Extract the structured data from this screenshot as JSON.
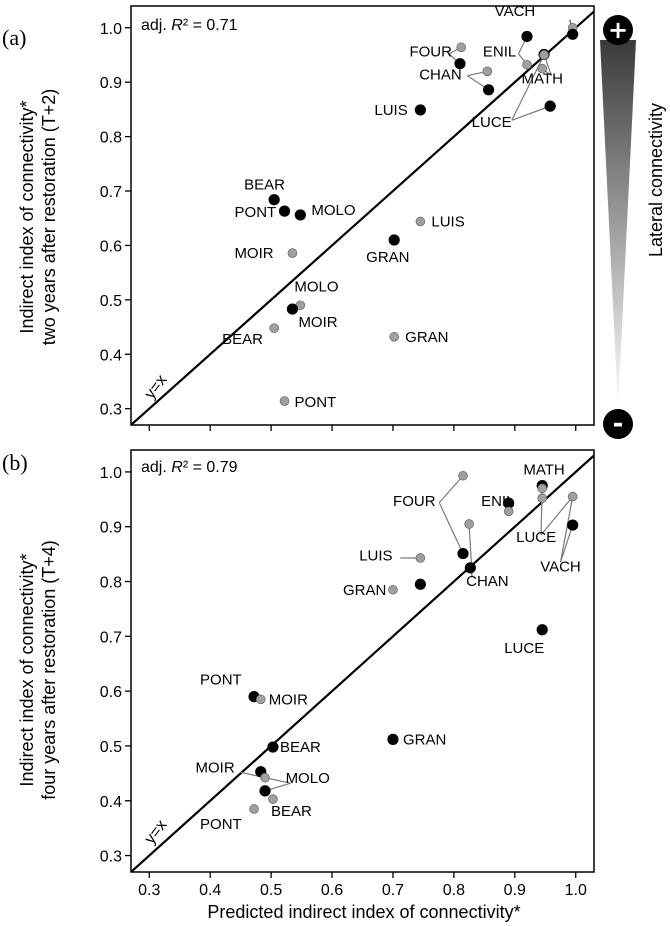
{
  "figure": {
    "shared_xlabel": "Predicted indirect index of connectivity*",
    "side_scale": {
      "label": "Lateral connectivity",
      "plus_symbol": "+",
      "minus_symbol": "-",
      "gradient_top": "#3a3a3a",
      "gradient_bottom": "#ffffff"
    }
  },
  "chart_data": [
    {
      "type": "scatter",
      "panel_label": "(a)",
      "annotation_prefix": "adj. ",
      "annotation_r": "R",
      "annotation_rest": "² = 0.71",
      "identity_label": "y=x",
      "ylabel_line1": "Indirect index of connectivity*",
      "ylabel_line2": "two years after restoration (T+2)",
      "xlabel": "",
      "xlim": [
        0.27,
        1.03
      ],
      "ylim": [
        0.27,
        1.04
      ],
      "xticks": [
        "0.3",
        "0.4",
        "0.5",
        "0.6",
        "0.7",
        "0.8",
        "0.9",
        "1.0"
      ],
      "yticks": [
        "0.3",
        "0.4",
        "0.5",
        "0.6",
        "0.7",
        "0.8",
        "0.9",
        "1.0"
      ],
      "colors": {
        "black": "#000000",
        "grey": "#a0a0a0",
        "leader": "#7a7a7a"
      },
      "points": [
        {
          "site": "VACH",
          "x": 0.995,
          "y": 1.0,
          "color": "grey"
        },
        {
          "site": "VACH",
          "x": 0.995,
          "y": 0.988,
          "color": "black"
        },
        {
          "site": "",
          "x": 0.92,
          "y": 0.984,
          "color": "black"
        },
        {
          "site": "",
          "x": 0.948,
          "y": 0.951,
          "color": "black"
        },
        {
          "site": "",
          "x": 0.948,
          "y": 0.95,
          "color": "grey"
        },
        {
          "site": "",
          "x": 0.92,
          "y": 0.932,
          "color": "grey"
        },
        {
          "site": "",
          "x": 0.945,
          "y": 0.925,
          "color": "grey"
        },
        {
          "site": "",
          "x": 0.812,
          "y": 0.964,
          "color": "grey"
        },
        {
          "site": "",
          "x": 0.81,
          "y": 0.934,
          "color": "black"
        },
        {
          "site": "",
          "x": 0.855,
          "y": 0.92,
          "color": "grey"
        },
        {
          "site": "",
          "x": 0.857,
          "y": 0.886,
          "color": "black"
        },
        {
          "site": "",
          "x": 0.958,
          "y": 0.856,
          "color": "black"
        },
        {
          "site": "LUIS",
          "x": 0.745,
          "y": 0.849,
          "color": "black"
        },
        {
          "site": "BEAR",
          "x": 0.505,
          "y": 0.684,
          "color": "black"
        },
        {
          "site": "PONT",
          "x": 0.522,
          "y": 0.663,
          "color": "black"
        },
        {
          "site": "MOLO",
          "x": 0.548,
          "y": 0.656,
          "color": "black"
        },
        {
          "site": "LUIS",
          "x": 0.745,
          "y": 0.644,
          "color": "grey"
        },
        {
          "site": "GRAN",
          "x": 0.702,
          "y": 0.61,
          "color": "black"
        },
        {
          "site": "MOIR",
          "x": 0.535,
          "y": 0.586,
          "color": "grey"
        },
        {
          "site": "MOLO",
          "x": 0.548,
          "y": 0.49,
          "color": "grey"
        },
        {
          "site": "MOIR",
          "x": 0.535,
          "y": 0.483,
          "color": "black"
        },
        {
          "site": "BEAR",
          "x": 0.505,
          "y": 0.448,
          "color": "grey"
        },
        {
          "site": "GRAN",
          "x": 0.702,
          "y": 0.432,
          "color": "grey"
        },
        {
          "site": "PONT",
          "x": 0.522,
          "y": 0.314,
          "color": "grey"
        }
      ],
      "group_labels": [
        {
          "text": "FOUR",
          "x": 0.762,
          "y": 0.947
        },
        {
          "text": "ENIL",
          "x": 0.875,
          "y": 0.947
        },
        {
          "text": "CHAN",
          "x": 0.778,
          "y": 0.905
        },
        {
          "text": "MATH",
          "x": 0.945,
          "y": 0.898
        },
        {
          "text": "LUCE",
          "x": 0.862,
          "y": 0.818
        }
      ],
      "leaders": [
        {
          "from": [
            0.99,
            1.015
          ],
          "to": [
            0.995,
            1.0
          ]
        },
        {
          "from": [
            0.99,
            1.015
          ],
          "to": [
            0.995,
            0.988
          ]
        },
        {
          "from": [
            0.792,
            0.952
          ],
          "to": [
            0.812,
            0.964
          ]
        },
        {
          "from": [
            0.792,
            0.952
          ],
          "to": [
            0.81,
            0.934
          ]
        },
        {
          "from": [
            0.906,
            0.952
          ],
          "to": [
            0.92,
            0.984
          ]
        },
        {
          "from": [
            0.906,
            0.952
          ],
          "to": [
            0.92,
            0.932
          ]
        },
        {
          "from": [
            0.822,
            0.912
          ],
          "to": [
            0.855,
            0.92
          ]
        },
        {
          "from": [
            0.822,
            0.912
          ],
          "to": [
            0.857,
            0.886
          ]
        },
        {
          "from": [
            0.96,
            0.912
          ],
          "to": [
            0.948,
            0.951
          ]
        },
        {
          "from": [
            0.96,
            0.912
          ],
          "to": [
            0.945,
            0.925
          ]
        },
        {
          "from": [
            0.895,
            0.83
          ],
          "to": [
            0.948,
            0.95
          ]
        },
        {
          "from": [
            0.895,
            0.83
          ],
          "to": [
            0.958,
            0.856
          ]
        }
      ]
    },
    {
      "type": "scatter",
      "panel_label": "(b)",
      "annotation_prefix": "adj. ",
      "annotation_r": "R",
      "annotation_rest": "² = 0.79",
      "identity_label": "y=x",
      "ylabel_line1": "Indirect index of connectivity*",
      "ylabel_line2": "four years after restoration (T+4)",
      "xlabel": "Predicted indirect index of connectivity*",
      "xlim": [
        0.27,
        1.03
      ],
      "ylim": [
        0.27,
        1.04
      ],
      "xticks": [
        "0.3",
        "0.4",
        "0.5",
        "0.6",
        "0.7",
        "0.8",
        "0.9",
        "1.0"
      ],
      "yticks": [
        "0.3",
        "0.4",
        "0.5",
        "0.6",
        "0.7",
        "0.8",
        "0.9",
        "1.0"
      ],
      "colors": {
        "black": "#000000",
        "grey": "#a0a0a0",
        "leader": "#7a7a7a"
      },
      "points": [
        {
          "site": "",
          "x": 0.815,
          "y": 0.993,
          "color": "grey"
        },
        {
          "site": "",
          "x": 0.945,
          "y": 0.975,
          "color": "black"
        },
        {
          "site": "",
          "x": 0.945,
          "y": 0.97,
          "color": "grey"
        },
        {
          "site": "",
          "x": 0.995,
          "y": 0.955,
          "color": "grey"
        },
        {
          "site": "",
          "x": 0.89,
          "y": 0.943,
          "color": "black"
        },
        {
          "site": "",
          "x": 0.945,
          "y": 0.952,
          "color": "grey"
        },
        {
          "site": "",
          "x": 0.89,
          "y": 0.928,
          "color": "grey"
        },
        {
          "site": "",
          "x": 0.825,
          "y": 0.905,
          "color": "grey"
        },
        {
          "site": "",
          "x": 0.995,
          "y": 0.903,
          "color": "black"
        },
        {
          "site": "",
          "x": 0.815,
          "y": 0.851,
          "color": "black"
        },
        {
          "site": "",
          "x": 0.827,
          "y": 0.825,
          "color": "black"
        },
        {
          "site": "",
          "x": 0.745,
          "y": 0.843,
          "color": "grey"
        },
        {
          "site": "GRAN",
          "x": 0.745,
          "y": 0.795,
          "color": "black"
        },
        {
          "site": "GRAN",
          "x": 0.7,
          "y": 0.785,
          "color": "grey"
        },
        {
          "site": "LUCE",
          "x": 0.945,
          "y": 0.712,
          "color": "black"
        },
        {
          "site": "PONT",
          "x": 0.472,
          "y": 0.59,
          "color": "black"
        },
        {
          "site": "MOIR",
          "x": 0.483,
          "y": 0.585,
          "color": "grey"
        },
        {
          "site": "GRAN",
          "x": 0.7,
          "y": 0.512,
          "color": "black"
        },
        {
          "site": "BEAR",
          "x": 0.503,
          "y": 0.498,
          "color": "black"
        },
        {
          "site": "",
          "x": 0.483,
          "y": 0.453,
          "color": "black"
        },
        {
          "site": "",
          "x": 0.49,
          "y": 0.442,
          "color": "grey"
        },
        {
          "site": "",
          "x": 0.49,
          "y": 0.418,
          "color": "black"
        },
        {
          "site": "BEAR",
          "x": 0.503,
          "y": 0.403,
          "color": "grey"
        },
        {
          "site": "PONT",
          "x": 0.472,
          "y": 0.385,
          "color": "grey"
        }
      ],
      "group_labels": [
        {
          "text": "MATH",
          "x": 0.948,
          "y": 0.995
        },
        {
          "text": "FOUR",
          "x": 0.735,
          "y": 0.938
        },
        {
          "text": "ENIL",
          "x": 0.872,
          "y": 0.938
        },
        {
          "text": "LUIS",
          "x": 0.672,
          "y": 0.838
        },
        {
          "text": "LUCE",
          "x": 0.935,
          "y": 0.872
        },
        {
          "text": "VACH",
          "x": 0.975,
          "y": 0.818
        },
        {
          "text": "CHAN",
          "x": 0.855,
          "y": 0.792
        },
        {
          "text": "MOIR",
          "x": 0.408,
          "y": 0.452
        },
        {
          "text": "MOLO",
          "x": 0.56,
          "y": 0.432
        }
      ],
      "leaders": [
        {
          "from": [
            0.776,
            0.944
          ],
          "to": [
            0.815,
            0.993
          ]
        },
        {
          "from": [
            0.776,
            0.944
          ],
          "to": [
            0.815,
            0.851
          ]
        },
        {
          "from": [
            0.89,
            0.94
          ],
          "to": [
            0.89,
            0.943
          ]
        },
        {
          "from": [
            0.712,
            0.843
          ],
          "to": [
            0.745,
            0.843
          ]
        },
        {
          "from": [
            0.943,
            0.885
          ],
          "to": [
            0.945,
            0.97
          ]
        },
        {
          "from": [
            0.943,
            0.885
          ],
          "to": [
            0.995,
            0.955
          ]
        },
        {
          "from": [
            0.975,
            0.835
          ],
          "to": [
            0.995,
            0.955
          ]
        },
        {
          "from": [
            0.975,
            0.835
          ],
          "to": [
            0.995,
            0.903
          ]
        },
        {
          "from": [
            0.83,
            0.808
          ],
          "to": [
            0.825,
            0.905
          ]
        },
        {
          "from": [
            0.83,
            0.808
          ],
          "to": [
            0.827,
            0.825
          ]
        },
        {
          "from": [
            0.45,
            0.452
          ],
          "to": [
            0.49,
            0.442
          ]
        },
        {
          "from": [
            0.532,
            0.432
          ],
          "to": [
            0.49,
            0.442
          ]
        },
        {
          "from": [
            0.532,
            0.432
          ],
          "to": [
            0.49,
            0.418
          ]
        }
      ]
    }
  ]
}
